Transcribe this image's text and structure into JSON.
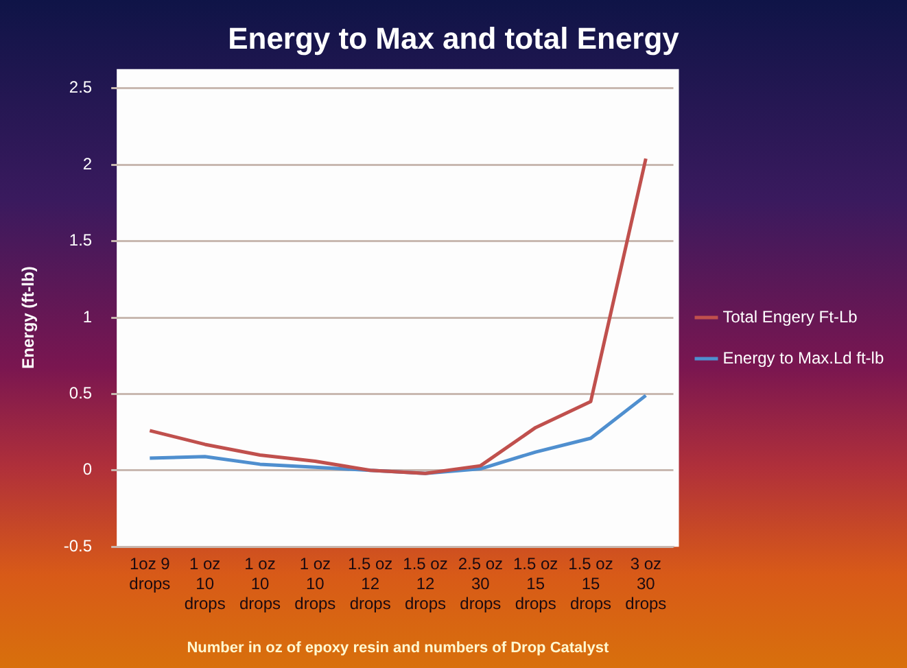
{
  "chart_data": {
    "type": "line",
    "title": "Energy to Max and total Energy",
    "xlabel": "Number in oz of epoxy resin and numbers of Drop Catalyst",
    "ylabel": "Energy (ft-lb)",
    "categories": [
      "1oz 9\ndrops",
      "1 oz\n10\ndrops",
      "1 oz\n10\ndrops",
      "1 oz\n10\ndrops",
      "1.5 oz\n12\ndrops",
      "1.5 oz\n12\ndrops",
      "2.5 oz\n30\ndrops",
      "1.5 oz\n15\ndrops",
      "1.5 oz\n15\ndrops",
      "3 oz\n30\ndrops"
    ],
    "series": [
      {
        "name": "Total Engery Ft-Lb",
        "color": "#c0504d",
        "values": [
          0.26,
          0.17,
          0.1,
          0.06,
          0,
          -0.02,
          0.03,
          0.28,
          0.45,
          2.04
        ]
      },
      {
        "name": "Energy to Max.Ld ft-lb",
        "color": "#4f8fcf",
        "values": [
          0.08,
          0.09,
          0.04,
          0.02,
          0,
          -0.02,
          0.01,
          0.12,
          0.21,
          0.49
        ]
      }
    ],
    "ylim": [
      -0.5,
      2.5
    ],
    "yticks": [
      -0.5,
      0,
      0.5,
      1,
      1.5,
      2,
      2.5
    ],
    "grid": "y",
    "legend": "right",
    "marker": "none",
    "line_style": "solid"
  }
}
